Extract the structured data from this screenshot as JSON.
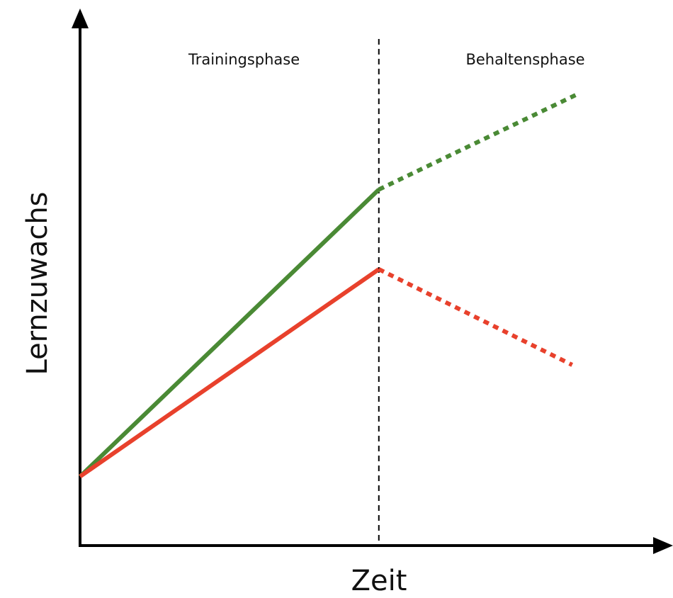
{
  "chart_data": {
    "type": "line",
    "xlabel": "Zeit",
    "ylabel": "Lernzuwachs",
    "xlim": [
      0,
      100
    ],
    "ylim": [
      0,
      100
    ],
    "phases": [
      {
        "label": "Trainingsphase",
        "x": 28
      },
      {
        "label": "Behaltensphase",
        "x": 76
      }
    ],
    "boundary": 51,
    "series": [
      {
        "color": "#4a8a35",
        "style": "solid",
        "x": [
          0,
          51
        ],
        "values": [
          13,
          67
        ]
      },
      {
        "color": "#4a8a35",
        "style": "dotted",
        "x": [
          51,
          85
        ],
        "values": [
          67,
          85
        ]
      },
      {
        "color": "#e8412c",
        "style": "solid",
        "x": [
          0,
          51
        ],
        "values": [
          13,
          52
        ]
      },
      {
        "color": "#e8412c",
        "style": "dotted",
        "x": [
          51,
          84
        ],
        "values": [
          52,
          34
        ]
      }
    ]
  }
}
